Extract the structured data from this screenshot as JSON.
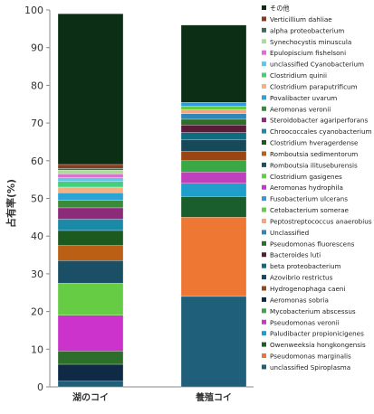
{
  "chart_data": {
    "type": "bar",
    "stacked": true,
    "title": "",
    "xlabel": "",
    "ylabel": "占有率(%)",
    "ylim": [
      0,
      100
    ],
    "yticks": [
      0,
      10,
      20,
      30,
      40,
      50,
      60,
      70,
      80,
      90,
      100
    ],
    "categories": [
      "湖のコイ",
      "養殖コイ"
    ],
    "grid": false,
    "legend_position": "right",
    "series": [
      {
        "name": "unclassified Spiroplasma",
        "color": "#1f5f7a",
        "values": [
          1.5,
          24.0
        ]
      },
      {
        "name": "Pseudomonas marginalis",
        "color": "#ee7733",
        "values": [
          0.0,
          21.0
        ]
      },
      {
        "name": "Owenweeksia hongkongensis",
        "color": "#1b5e2e",
        "values": [
          0.0,
          5.5
        ]
      },
      {
        "name": "Paludibacter propionicigenes",
        "color": "#1fa0cc",
        "values": [
          0.0,
          3.5
        ]
      },
      {
        "name": "Pseudomonas veronii",
        "color": "#c03fbe",
        "values": [
          0.0,
          3.0
        ]
      },
      {
        "name": "Mycobacterium abscessus",
        "color": "#3aa845",
        "values": [
          0.0,
          3.0
        ]
      },
      {
        "name": "Aeromonas sobria",
        "color": "#0e2a47",
        "values": [
          4.5,
          0.0
        ]
      },
      {
        "name": "Hydrogenophaga caeni",
        "color": "#9a4514",
        "values": [
          0.0,
          2.5
        ]
      },
      {
        "name": "Azovibrio restrictus",
        "color": "#17495a",
        "values": [
          0.0,
          3.0
        ]
      },
      {
        "name": "beta proteobacterium",
        "color": "#0e6b80",
        "values": [
          0.0,
          2.0
        ]
      },
      {
        "name": "Bacteroides luti",
        "color": "#5a1a3a",
        "values": [
          0.0,
          2.0
        ]
      },
      {
        "name": "Pseudomonas fluorescens",
        "color": "#2d6e2a",
        "values": [
          3.5,
          1.5
        ]
      },
      {
        "name": "Unclassified",
        "color": "#2f87b8",
        "values": [
          0.0,
          1.5
        ]
      },
      {
        "name": "Peptostreptococcus anaerobius",
        "color": "#f4a582",
        "values": [
          0.0,
          1.0
        ]
      },
      {
        "name": "Cetobacterium somerae",
        "color": "#66cc44",
        "values": [
          0.0,
          1.0
        ]
      },
      {
        "name": "Fusobacterium ulcerans",
        "color": "#3399dd",
        "values": [
          0.0,
          1.0
        ]
      },
      {
        "name": "Aeromonas hydrophila",
        "color": "#cc33cc",
        "values": [
          9.5,
          0.0
        ]
      },
      {
        "name": "Clostridium gasigenes",
        "color": "#66cc44",
        "values": [
          8.5,
          0.0
        ]
      },
      {
        "name": "Romboutsia ilituseburensis",
        "color": "#1f2f5f",
        "values": [
          0.0,
          0.0
        ]
      },
      {
        "name": "Romboutsia sedimentorum",
        "color": "#1b4f66",
        "values": [
          6.0,
          0.0
        ]
      },
      {
        "name": "Clostridium hveragerdense",
        "color": "#bb5f14",
        "values": [
          4.0,
          0.0
        ]
      },
      {
        "name": "Chroococcales cyanobacterium",
        "color": "#1c5a20",
        "values": [
          4.0,
          0.0
        ]
      },
      {
        "name": "Steroidobacter agariperforans",
        "color": "#1a8aa8",
        "values": [
          3.0,
          0.0
        ]
      },
      {
        "name": "Aeromonas veronii",
        "color": "#8b2b7a",
        "values": [
          3.0,
          0.0
        ]
      },
      {
        "name": "Povalibacter uvarum",
        "color": "#3a8a3a",
        "values": [
          2.0,
          0.0
        ]
      },
      {
        "name": "Clostridium paraputrificum",
        "color": "#29a3d8",
        "values": [
          2.0,
          0.0
        ]
      },
      {
        "name": "Clostridium quinii",
        "color": "#f4b183",
        "values": [
          1.5,
          0.0
        ]
      },
      {
        "name": "unclassified Cyanobacterium",
        "color": "#44d07a",
        "values": [
          1.5,
          0.0
        ]
      },
      {
        "name": "Epulopiscium fishelsoni",
        "color": "#5bc8ea",
        "values": [
          1.0,
          0.0
        ]
      },
      {
        "name": "Synechocystis minuscula",
        "color": "#e36ad8",
        "values": [
          1.0,
          0.0
        ]
      },
      {
        "name": "alpha proteobacterium",
        "color": "#a9df8e",
        "values": [
          1.0,
          0.0
        ]
      },
      {
        "name": "Verticillium dahliae",
        "color": "#3a6e5a",
        "values": [
          0.5,
          0.0
        ]
      },
      {
        "name": "その他",
        "color": "#8b3a1c",
        "values": [
          1.0,
          0.0
        ]
      },
      {
        "name": "",
        "color": "#0b2e14",
        "values": [
          40.0,
          20.5
        ]
      }
    ],
    "legend": [
      {
        "name": "その他",
        "color": "#0b2e14"
      },
      {
        "name": "Verticillium dahliae",
        "color": "#8b3a1c"
      },
      {
        "name": "alpha proteobacterium",
        "color": "#3a6e5a"
      },
      {
        "name": "Synechocystis minuscula",
        "color": "#a9df8e"
      },
      {
        "name": "Epulopiscium fishelsoni",
        "color": "#e36ad8"
      },
      {
        "name": "unclassified Cyanobacterium",
        "color": "#5bc8ea"
      },
      {
        "name": "Clostridium quinii",
        "color": "#44d07a"
      },
      {
        "name": "Clostridium paraputrificum",
        "color": "#f4b183"
      },
      {
        "name": "Povalibacter uvarum",
        "color": "#29a3d8"
      },
      {
        "name": "Aeromonas veronii",
        "color": "#3a8a3a"
      },
      {
        "name": "Steroidobacter agariperforans",
        "color": "#8b2b7a"
      },
      {
        "name": "Chroococcales cyanobacterium",
        "color": "#1a8aa8"
      },
      {
        "name": "Clostridium hveragerdense",
        "color": "#1c5a20"
      },
      {
        "name": "Romboutsia sedimentorum",
        "color": "#bb5f14"
      },
      {
        "name": "Romboutsia ilituseburensis",
        "color": "#1b4f66"
      },
      {
        "name": "Clostridium gasigenes",
        "color": "#66cc44"
      },
      {
        "name": "Aeromonas hydrophila",
        "color": "#cc33cc"
      },
      {
        "name": "Fusobacterium ulcerans",
        "color": "#3399dd"
      },
      {
        "name": "Cetobacterium somerae",
        "color": "#66cc44"
      },
      {
        "name": "Peptostreptococcus anaerobius",
        "color": "#f4a582"
      },
      {
        "name": "Unclassified",
        "color": "#2f87b8"
      },
      {
        "name": "Pseudomonas fluorescens",
        "color": "#2d6e2a"
      },
      {
        "name": "Bacteroides luti",
        "color": "#5a1a3a"
      },
      {
        "name": "beta proteobacterium",
        "color": "#0e6b80"
      },
      {
        "name": "Azovibrio restrictus",
        "color": "#17495a"
      },
      {
        "name": "Hydrogenophaga caeni",
        "color": "#9a4514"
      },
      {
        "name": "Aeromonas sobria",
        "color": "#0e2a47"
      },
      {
        "name": "Mycobacterium abscessus",
        "color": "#3aa845"
      },
      {
        "name": "Pseudomonas veronii",
        "color": "#c03fbe"
      },
      {
        "name": "Paludibacter propionicigenes",
        "color": "#1fa0cc"
      },
      {
        "name": "Owenweeksia hongkongensis",
        "color": "#1b5e2e"
      },
      {
        "name": "Pseudomonas marginalis",
        "color": "#ee7733"
      },
      {
        "name": "unclassified Spiroplasma",
        "color": "#1f5f7a"
      }
    ]
  }
}
